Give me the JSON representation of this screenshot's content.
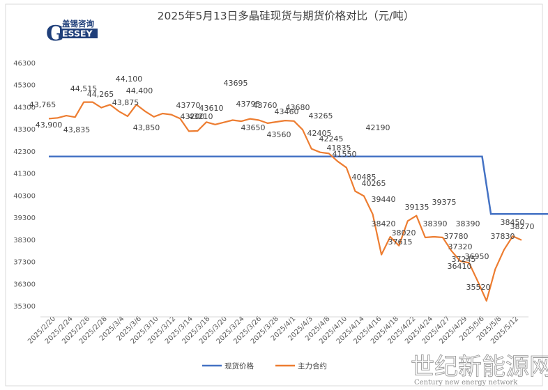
{
  "chart_data": {
    "type": "line",
    "title": "2025年5月13日多晶硅现货与期货价格对比（元/吨）",
    "xlabel": "",
    "ylabel": "",
    "ylim": [
      35300,
      46300
    ],
    "yticks": [
      35300,
      36300,
      37300,
      38300,
      39300,
      40300,
      41300,
      42300,
      43300,
      44300,
      45300,
      46300
    ],
    "grid": false,
    "legend": "bottom",
    "x_tick_labels": [
      "2025/2/20",
      "2025/2/24",
      "2025/2/26",
      "2025/2/28",
      "2025/3/4",
      "2025/3/6",
      "2025/3/10",
      "2025/3/12",
      "2025/3/14",
      "2025/3/18",
      "2025/3/20",
      "2025/3/24",
      "2025/3/26",
      "2025/3/28",
      "2025/4/1",
      "2025/4/3",
      "2025/4/8",
      "2025/4/10",
      "2025/4/14",
      "2025/4/16",
      "2025/4/18",
      "2025/4/22",
      "2025/4/24",
      "2025/4/27",
      "2025/4/29",
      "2025/5/6",
      "2025/5/8",
      "2025/5/12"
    ],
    "series": [
      {
        "name": "现货价格",
        "color": "#4472c4",
        "points": [
          [
            0,
            42050
          ],
          [
            49.5,
            42050
          ],
          [
            50.5,
            39450
          ],
          [
            68,
            39450
          ]
        ]
      },
      {
        "name": "主力合约",
        "color": "#ed7d31",
        "values": [
          43765,
          43800,
          43900,
          43835,
          44515,
          44515,
          44265,
          44400,
          44100,
          43875,
          44400,
          44100,
          43850,
          44000,
          43950,
          43770,
          43200,
          43210,
          43610,
          43500,
          43600,
          43700,
          43650,
          43760,
          43700,
          43560,
          43620,
          43680,
          43660,
          43265,
          42405,
          42245,
          42190,
          41835,
          41550,
          40485,
          40265,
          39440,
          37615,
          38420,
          38020,
          39135,
          39375,
          38390,
          38420,
          38390,
          37780,
          37320,
          37245,
          36410,
          35520,
          36950,
          37830,
          38450,
          38270
        ]
      }
    ],
    "data_labels": [
      {
        "text": "43,765"
      },
      {
        "text": "43,900"
      },
      {
        "text": "43,835"
      },
      {
        "text": "44,515"
      },
      {
        "text": "44,265"
      },
      {
        "text": "44,100"
      },
      {
        "text": "43,875"
      },
      {
        "text": "44,400"
      },
      {
        "text": "43,850"
      },
      {
        "text": "43770"
      },
      {
        "text": "43210"
      },
      {
        "text": "43200"
      },
      {
        "text": "43610"
      },
      {
        "text": "43695"
      },
      {
        "text": "43795"
      },
      {
        "text": "43760"
      },
      {
        "text": "43650"
      },
      {
        "text": "43460"
      },
      {
        "text": "43680"
      },
      {
        "text": "43560"
      },
      {
        "text": "43265"
      },
      {
        "text": "42405"
      },
      {
        "text": "42245"
      },
      {
        "text": "42190"
      },
      {
        "text": "41835"
      },
      {
        "text": "41550"
      },
      {
        "text": "40485"
      },
      {
        "text": "40265"
      },
      {
        "text": "39440"
      },
      {
        "text": "37615"
      },
      {
        "text": "38420"
      },
      {
        "text": "38020"
      },
      {
        "text": "39135"
      },
      {
        "text": "39375"
      },
      {
        "text": "38390"
      },
      {
        "text": "38390"
      },
      {
        "text": "37780"
      },
      {
        "text": "37320"
      },
      {
        "text": "37245"
      },
      {
        "text": "36950"
      },
      {
        "text": "36410"
      },
      {
        "text": "35520"
      },
      {
        "text": "37830"
      },
      {
        "text": "38450"
      },
      {
        "text": "38270"
      }
    ]
  },
  "logo": {
    "cn": "盖锡咨询",
    "en": "ESSEY",
    "initial": "G"
  },
  "watermark": {
    "cn": "世纪新能源网",
    "en": "Century new energy network"
  }
}
